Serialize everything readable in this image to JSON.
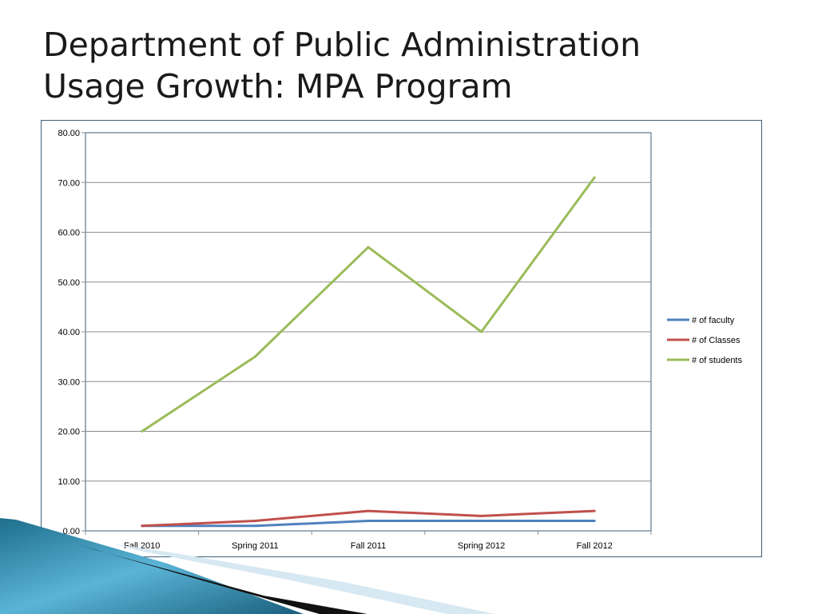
{
  "slide": {
    "title_line1": "Department of Public Administration",
    "title_line2": "Usage Growth:  MPA Program"
  },
  "colors": {
    "faculty": "#4f81bd",
    "classes": "#c0504d",
    "students": "#9bbb59",
    "gridline": "#8c8c8c",
    "frame": "#3d5f7a"
  },
  "chart_data": {
    "type": "line",
    "title": "",
    "xlabel": "",
    "ylabel": "",
    "categories": [
      "Fall 2010",
      "Spring 2011",
      "Fall 2011",
      "Spring 2012",
      "Fall 2012"
    ],
    "series": [
      {
        "key": "faculty",
        "name": "# of faculty",
        "values": [
          1,
          1,
          2,
          2,
          2
        ]
      },
      {
        "key": "classes",
        "name": "# of Classes",
        "values": [
          1,
          2,
          4,
          3,
          4
        ]
      },
      {
        "key": "students",
        "name": "# of students",
        "values": [
          20,
          35,
          57,
          40,
          71
        ]
      }
    ],
    "ylim": [
      0,
      80
    ],
    "yticks": [
      "0.00",
      "10.00",
      "20.00",
      "30.00",
      "40.00",
      "50.00",
      "60.00",
      "70.00",
      "80.00"
    ],
    "grid": true,
    "legend_position": "right"
  }
}
